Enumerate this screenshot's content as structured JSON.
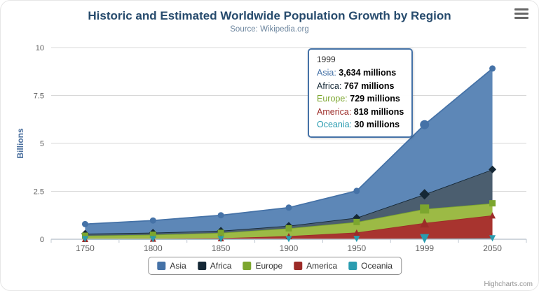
{
  "title": "Historic and Estimated Worldwide Population Growth by Region",
  "subtitle": "Source: Wikipedia.org",
  "credits": "Highcharts.com",
  "chart_data": {
    "type": "area",
    "stacking": "normal",
    "title": "Historic and Estimated Worldwide Population Growth by Region",
    "subtitle": "Source: Wikipedia.org",
    "ylabel": "Billions",
    "unit": "millions",
    "ylim": [
      0,
      10
    ],
    "yticks": [
      0,
      2.5,
      5,
      7.5,
      10
    ],
    "grid": "horizontal",
    "legend_position": "bottom",
    "categories": [
      "1750",
      "1800",
      "1850",
      "1900",
      "1950",
      "1999",
      "2050"
    ],
    "series": [
      {
        "name": "Asia",
        "color": "#4572A7",
        "fill": "#5d87b7",
        "marker": "circle",
        "values": [
          502,
          635,
          809,
          947,
          1402,
          3634,
          5268
        ]
      },
      {
        "name": "Africa",
        "color": "#152836",
        "fill": "#4b5e6f",
        "marker": "diamond",
        "values": [
          106,
          107,
          111,
          133,
          221,
          767,
          1766
        ]
      },
      {
        "name": "Europe",
        "color": "#7ca62e",
        "fill": "#9cba45",
        "marker": "square",
        "values": [
          163,
          203,
          276,
          408,
          547,
          729,
          628
        ]
      },
      {
        "name": "America",
        "color": "#9c2b28",
        "fill": "#a8342f",
        "marker": "triangle",
        "values": [
          18,
          31,
          54,
          156,
          339,
          818,
          1201
        ]
      },
      {
        "name": "Oceania",
        "color": "#2a9cb0",
        "fill": "#3fb1c5",
        "marker": "triangle-down",
        "values": [
          2,
          2,
          2,
          6,
          13,
          30,
          46
        ]
      }
    ],
    "hover_category_index": 5,
    "tooltip": {
      "x": "1999",
      "rows": [
        {
          "name": "Asia",
          "value": "3,634 millions"
        },
        {
          "name": "Africa",
          "value": "767 millions"
        },
        {
          "name": "Europe",
          "value": "729 millions"
        },
        {
          "name": "America",
          "value": "818 millions"
        },
        {
          "name": "Oceania",
          "value": "30 millions"
        }
      ]
    }
  }
}
